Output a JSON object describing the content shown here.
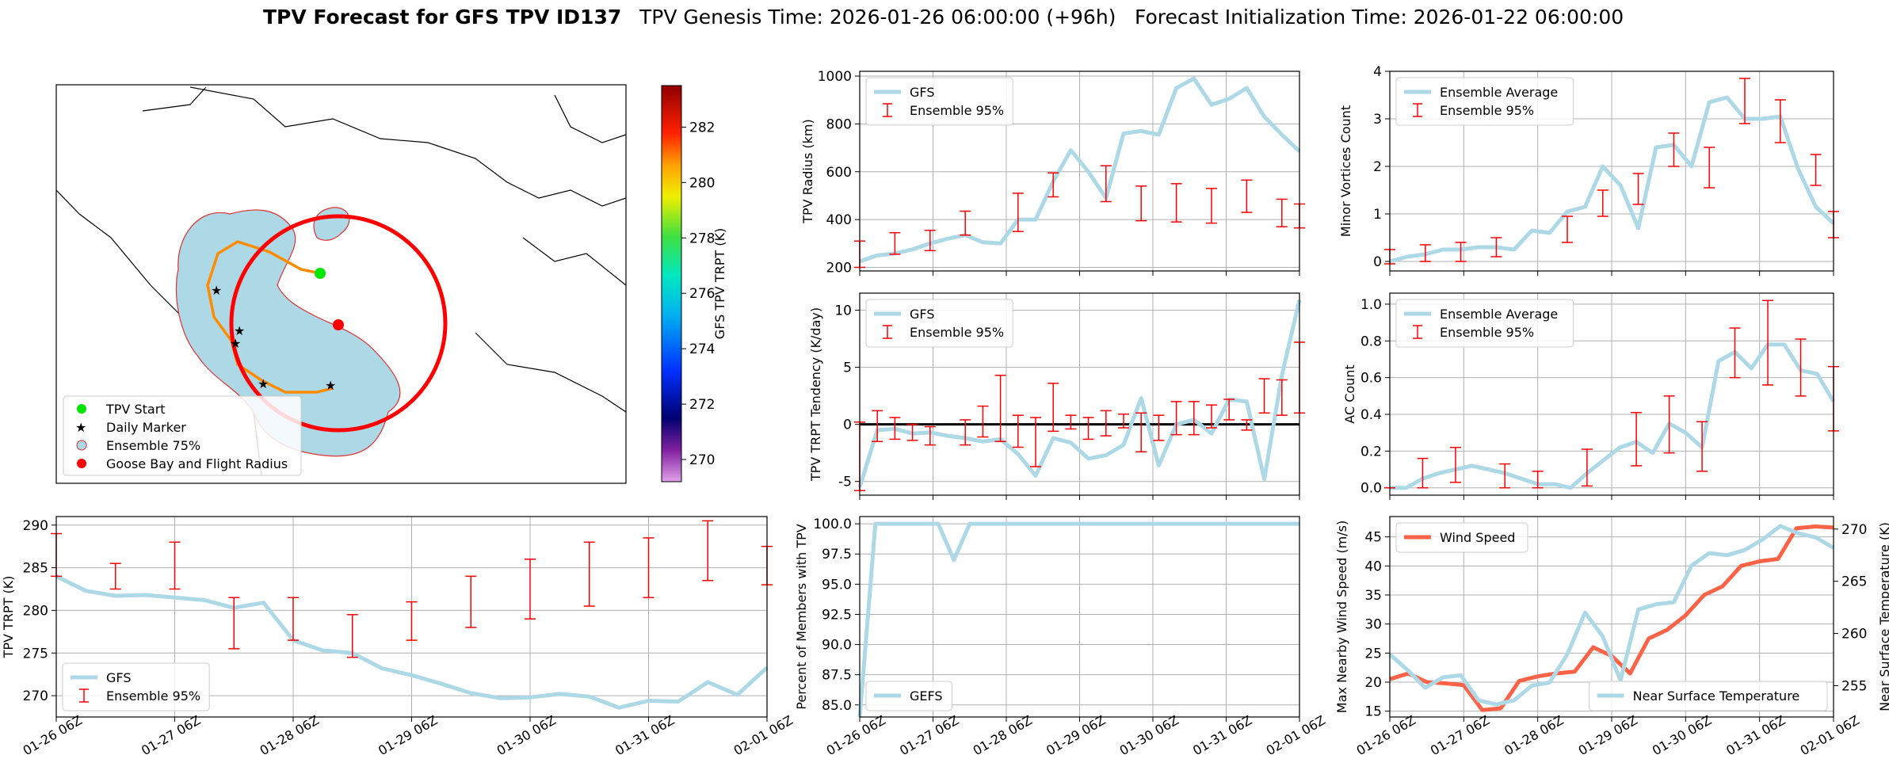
{
  "header": {
    "title_bold": "TPV Forecast for GFS TPV ID137",
    "genesis": "TPV Genesis Time: 2026-01-26 06:00:00 (+96h)",
    "init": "Forecast Initialization Time: 2026-01-22 06:00:00"
  },
  "colors": {
    "gfs_line": "#add8e6",
    "err_bar": "#ff0000",
    "wind": "#ff6347",
    "sfc_temp_axis": "#4169e1",
    "land": "#add8e6"
  },
  "time_ticks": [
    "01-26 06Z",
    "01-27 06Z",
    "01-28 06Z",
    "01-29 06Z",
    "01-30 06Z",
    "01-31 06Z",
    "02-01 06Z"
  ],
  "map": {
    "colorbar_label": "GFS TPV TRPT (K)",
    "colorbar_ticks": [
      "270",
      "272",
      "274",
      "276",
      "278",
      "280",
      "282"
    ],
    "colorbar_range": [
      269.2,
      283.5
    ],
    "legend": [
      "TPV Start",
      "Daily Marker",
      "Ensemble 75%",
      "Goose Bay and Flight Radius"
    ],
    "legend_colors": [
      "#00e600",
      "#e620e6",
      "#add8e6",
      "#ff0000"
    ]
  },
  "chart_data": [
    {
      "id": "radius",
      "type": "line",
      "ylabel": "TPV Radius (km)",
      "ylim": [
        185,
        1020
      ],
      "yticks": [
        200,
        400,
        600,
        800,
        1000
      ],
      "legend": [
        "GFS",
        "Ensemble 95%"
      ],
      "series": [
        {
          "name": "GFS",
          "values": [
            225,
            250,
            258,
            275,
            300,
            320,
            335,
            305,
            300,
            400,
            400,
            560,
            690,
            600,
            490,
            760,
            770,
            755,
            950,
            990,
            880,
            905,
            950,
            830,
            755,
            685
          ]
        }
      ],
      "errorbars": [
        {
          "i": 0,
          "lo": 200,
          "hi": 310
        },
        {
          "i": 2,
          "lo": 255,
          "hi": 345
        },
        {
          "i": 4,
          "lo": 270,
          "hi": 355
        },
        {
          "i": 6,
          "lo": 335,
          "hi": 435
        },
        {
          "i": 9,
          "lo": 350,
          "hi": 510
        },
        {
          "i": 11,
          "lo": 495,
          "hi": 595
        },
        {
          "i": 14,
          "lo": 475,
          "hi": 625
        },
        {
          "i": 16,
          "lo": 395,
          "hi": 540
        },
        {
          "i": 18,
          "lo": 390,
          "hi": 550
        },
        {
          "i": 20,
          "lo": 385,
          "hi": 530
        },
        {
          "i": 22,
          "lo": 430,
          "hi": 565
        },
        {
          "i": 24,
          "lo": 370,
          "hi": 485
        },
        {
          "i": 25,
          "lo": 365,
          "hi": 465
        }
      ]
    },
    {
      "id": "minor",
      "type": "line",
      "ylabel": "Minor Vortices Count",
      "ylim": [
        -0.2,
        4.0
      ],
      "yticks": [
        0,
        1,
        2,
        3,
        4
      ],
      "legend": [
        "Ensemble Average",
        "Ensemble 95%"
      ],
      "series": [
        {
          "name": "Ensemble Average",
          "values": [
            0.0,
            0.1,
            0.15,
            0.25,
            0.25,
            0.3,
            0.3,
            0.25,
            0.65,
            0.6,
            1.05,
            1.15,
            2.0,
            1.6,
            0.7,
            2.4,
            2.45,
            2.0,
            3.35,
            3.45,
            3.0,
            3.0,
            3.05,
            1.95,
            1.15,
            0.8
          ]
        }
      ],
      "errorbars": [
        {
          "i": 0,
          "lo": -0.05,
          "hi": 0.25
        },
        {
          "i": 2,
          "lo": 0.0,
          "hi": 0.35
        },
        {
          "i": 4,
          "lo": 0.0,
          "hi": 0.4
        },
        {
          "i": 6,
          "lo": 0.1,
          "hi": 0.5
        },
        {
          "i": 10,
          "lo": 0.4,
          "hi": 0.95
        },
        {
          "i": 12,
          "lo": 0.95,
          "hi": 1.5
        },
        {
          "i": 14,
          "lo": 1.2,
          "hi": 1.85
        },
        {
          "i": 16,
          "lo": 2.0,
          "hi": 2.7
        },
        {
          "i": 18,
          "lo": 1.55,
          "hi": 2.4
        },
        {
          "i": 20,
          "lo": 2.9,
          "hi": 3.85
        },
        {
          "i": 22,
          "lo": 2.5,
          "hi": 3.4
        },
        {
          "i": 24,
          "lo": 1.6,
          "hi": 2.25
        },
        {
          "i": 25,
          "lo": 0.5,
          "hi": 1.05
        }
      ]
    },
    {
      "id": "tendency",
      "type": "line",
      "ylabel": "TPV TRPT Tendency (K/day)",
      "ylim": [
        -6.2,
        11.5
      ],
      "yticks": [
        -5,
        0,
        5,
        10
      ],
      "legend": [
        "GFS",
        "Ensemble 95%"
      ],
      "zero_line": true,
      "series": [
        {
          "name": "GFS",
          "values": [
            -5.5,
            -0.5,
            -0.4,
            -0.8,
            -0.7,
            -1.0,
            -1.2,
            -1.5,
            -1.3,
            -2.6,
            -4.5,
            -1.2,
            -1.6,
            -3.0,
            -2.7,
            -1.8,
            2.3,
            -3.6,
            0.0,
            0.4,
            -0.8,
            2.2,
            2.0,
            -4.8,
            4.3,
            10.9
          ]
        }
      ],
      "errorbars": [
        {
          "i": 0,
          "lo": -5.8,
          "hi": 0.2
        },
        {
          "i": 1,
          "lo": -1.5,
          "hi": 1.2
        },
        {
          "i": 2,
          "lo": -1.3,
          "hi": 0.6
        },
        {
          "i": 3,
          "lo": -1.4,
          "hi": 0.0
        },
        {
          "i": 4,
          "lo": -1.8,
          "hi": -0.2
        },
        {
          "i": 6,
          "lo": -1.8,
          "hi": 0.4
        },
        {
          "i": 7,
          "lo": -1.1,
          "hi": 1.6
        },
        {
          "i": 8,
          "lo": -1.5,
          "hi": 4.3
        },
        {
          "i": 9,
          "lo": -2.0,
          "hi": 0.8
        },
        {
          "i": 10,
          "lo": -3.7,
          "hi": 0.6
        },
        {
          "i": 11,
          "lo": -0.6,
          "hi": 3.6
        },
        {
          "i": 12,
          "lo": -0.4,
          "hi": 0.8
        },
        {
          "i": 13,
          "lo": -1.3,
          "hi": 0.6
        },
        {
          "i": 14,
          "lo": -1.0,
          "hi": 1.2
        },
        {
          "i": 15,
          "lo": -0.3,
          "hi": 0.9
        },
        {
          "i": 16,
          "lo": -2.4,
          "hi": 1.0
        },
        {
          "i": 17,
          "lo": -1.4,
          "hi": 0.8
        },
        {
          "i": 18,
          "lo": -0.9,
          "hi": 2.0
        },
        {
          "i": 19,
          "lo": -0.9,
          "hi": 2.0
        },
        {
          "i": 20,
          "lo": -0.3,
          "hi": 1.7
        },
        {
          "i": 21,
          "lo": 0.4,
          "hi": 2.2
        },
        {
          "i": 22,
          "lo": -0.5,
          "hi": 0.4
        },
        {
          "i": 23,
          "lo": 1.0,
          "hi": 4.0
        },
        {
          "i": 24,
          "lo": 0.8,
          "hi": 3.9
        },
        {
          "i": 25,
          "lo": 1.0,
          "hi": 7.2
        }
      ]
    },
    {
      "id": "ac",
      "type": "line",
      "ylabel": "AC Count",
      "ylim": [
        -0.04,
        1.06
      ],
      "yticks": [
        0.0,
        0.2,
        0.4,
        0.6,
        0.8,
        1.0
      ],
      "legend": [
        "Ensemble Average",
        "Ensemble 95%"
      ],
      "series": [
        {
          "name": "Ensemble Average",
          "values": [
            0.0,
            0.0,
            0.05,
            0.08,
            0.1,
            0.12,
            0.1,
            0.08,
            0.05,
            0.02,
            0.02,
            0.0,
            0.08,
            0.15,
            0.22,
            0.25,
            0.19,
            0.35,
            0.3,
            0.22,
            0.69,
            0.74,
            0.65,
            0.78,
            0.78,
            0.64,
            0.62,
            0.47
          ]
        }
      ],
      "errorbars": [
        {
          "i": 0,
          "lo": 0.0,
          "hi": 0.0
        },
        {
          "i": 2,
          "lo": 0.0,
          "hi": 0.16
        },
        {
          "i": 4,
          "lo": 0.03,
          "hi": 0.22
        },
        {
          "i": 7,
          "lo": 0.0,
          "hi": 0.13
        },
        {
          "i": 9,
          "lo": 0.0,
          "hi": 0.09
        },
        {
          "i": 12,
          "lo": 0.01,
          "hi": 0.21
        },
        {
          "i": 15,
          "lo": 0.12,
          "hi": 0.41
        },
        {
          "i": 17,
          "lo": 0.19,
          "hi": 0.5
        },
        {
          "i": 19,
          "lo": 0.09,
          "hi": 0.36
        },
        {
          "i": 21,
          "lo": 0.6,
          "hi": 0.87
        },
        {
          "i": 23,
          "lo": 0.56,
          "hi": 1.02
        },
        {
          "i": 25,
          "lo": 0.5,
          "hi": 0.81
        },
        {
          "i": 27,
          "lo": 0.31,
          "hi": 0.66
        }
      ]
    },
    {
      "id": "trpt",
      "type": "line",
      "ylabel": "TPV TRPT (K)",
      "ylim": [
        267.5,
        291.0
      ],
      "yticks": [
        270,
        275,
        280,
        285,
        290
      ],
      "legend": [
        "GFS",
        "Ensemble 95%"
      ],
      "series": [
        {
          "name": "GFS",
          "values": [
            284.0,
            282.3,
            281.7,
            281.8,
            281.5,
            281.2,
            280.3,
            280.9,
            276.5,
            275.3,
            275.0,
            273.2,
            272.4,
            271.4,
            270.3,
            269.7,
            269.8,
            270.2,
            269.9,
            268.6,
            269.4,
            269.3,
            271.6,
            270.1,
            273.3
          ]
        }
      ],
      "errorbars": [
        {
          "i": 0,
          "lo": 284.0,
          "hi": 289.0
        },
        {
          "i": 2,
          "lo": 282.5,
          "hi": 285.5
        },
        {
          "i": 4,
          "lo": 282.5,
          "hi": 288.0
        },
        {
          "i": 6,
          "lo": 275.5,
          "hi": 281.5
        },
        {
          "i": 8,
          "lo": 276.5,
          "hi": 281.5
        },
        {
          "i": 10,
          "lo": 274.5,
          "hi": 279.5
        },
        {
          "i": 12,
          "lo": 276.5,
          "hi": 281.0
        },
        {
          "i": 14,
          "lo": 278.0,
          "hi": 284.0
        },
        {
          "i": 16,
          "lo": 279.0,
          "hi": 286.0
        },
        {
          "i": 18,
          "lo": 280.5,
          "hi": 288.0
        },
        {
          "i": 20,
          "lo": 281.5,
          "hi": 288.5
        },
        {
          "i": 22,
          "lo": 283.5,
          "hi": 290.5
        },
        {
          "i": 24,
          "lo": 283.0,
          "hi": 287.5
        }
      ]
    },
    {
      "id": "percent",
      "type": "line",
      "ylabel": "Percent of Members with TPV",
      "ylim": [
        84.0,
        100.6
      ],
      "yticks": [
        85.0,
        87.5,
        90.0,
        92.5,
        95.0,
        97.5,
        100.0
      ],
      "legend": [
        "GEFS"
      ],
      "series": [
        {
          "name": "GEFS",
          "values": [
            84.0,
            100,
            100,
            100,
            100,
            100,
            97.0,
            100,
            100,
            100,
            100,
            100,
            100,
            100,
            100,
            100,
            100,
            100,
            100,
            100,
            100,
            100,
            100,
            100,
            100,
            100,
            100,
            100,
            100
          ]
        }
      ]
    },
    {
      "id": "wind",
      "type": "line",
      "ylabel": "Max Nearby Wind Speed (m/s)",
      "ylabel_right": "Near Surface Temperature (K)",
      "ylim": [
        14.0,
        48.5
      ],
      "yticks": [
        15,
        20,
        25,
        30,
        35,
        40,
        45
      ],
      "ylim_right": [
        252.0,
        271.2
      ],
      "yticks_right": [
        255,
        260,
        265,
        270
      ],
      "legend": [
        "Wind Speed"
      ],
      "legend_right": [
        "Near Surface Temperature"
      ],
      "series": [
        {
          "name": "Wind Speed",
          "axis": "left",
          "values": [
            20.5,
            21.5,
            20.0,
            19.8,
            19.5,
            15.2,
            15.5,
            20.2,
            21.0,
            21.5,
            21.8,
            26.0,
            24.5,
            21.5,
            27.5,
            29.0,
            31.5,
            35.0,
            36.5,
            40.0,
            40.8,
            41.2,
            46.5,
            46.8,
            46.6
          ]
        },
        {
          "name": "Near Surface Temperature",
          "axis": "right",
          "values": [
            258.0,
            256.5,
            254.8,
            255.8,
            256.0,
            253.6,
            253.2,
            253.6,
            255.0,
            255.3,
            258.0,
            262.0,
            259.7,
            255.5,
            262.3,
            262.8,
            263.0,
            266.5,
            267.7,
            267.5,
            268.0,
            269.0,
            270.3,
            269.6,
            269.2,
            268.2
          ]
        }
      ]
    }
  ]
}
